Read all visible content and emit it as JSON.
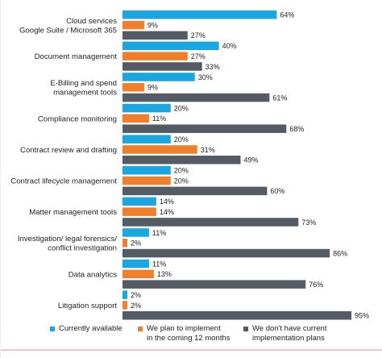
{
  "chart_data": {
    "type": "bar",
    "orientation": "horizontal",
    "categories": [
      "Cloud services\nGoogle Suite / Microsoft 365",
      "Document management",
      "E-Billing and spend\nmanagement tools",
      "Compliance monitoring",
      "Contract review and drafting",
      "Contract lifecycle management",
      "Matter management tools",
      "Investigation/ legal forensics/\nconflict investigation",
      "Data analytics",
      "Litigation support"
    ],
    "series": [
      {
        "name": "Currently available",
        "color": "#1aa6e1",
        "values": [
          64,
          40,
          30,
          20,
          20,
          20,
          14,
          11,
          11,
          2
        ]
      },
      {
        "name": "We plan to implement\nin the coming 12 months",
        "color": "#f07f2c",
        "values": [
          9,
          27,
          9,
          11,
          31,
          20,
          14,
          2,
          13,
          2
        ]
      },
      {
        "name": "We don't have current\nimplementation plans",
        "color": "#555b64",
        "values": [
          27,
          33,
          61,
          68,
          49,
          60,
          73,
          86,
          76,
          95
        ]
      }
    ],
    "value_suffix": "%",
    "xlim": [
      0,
      100
    ],
    "grid": false,
    "legend_position": "bottom"
  }
}
